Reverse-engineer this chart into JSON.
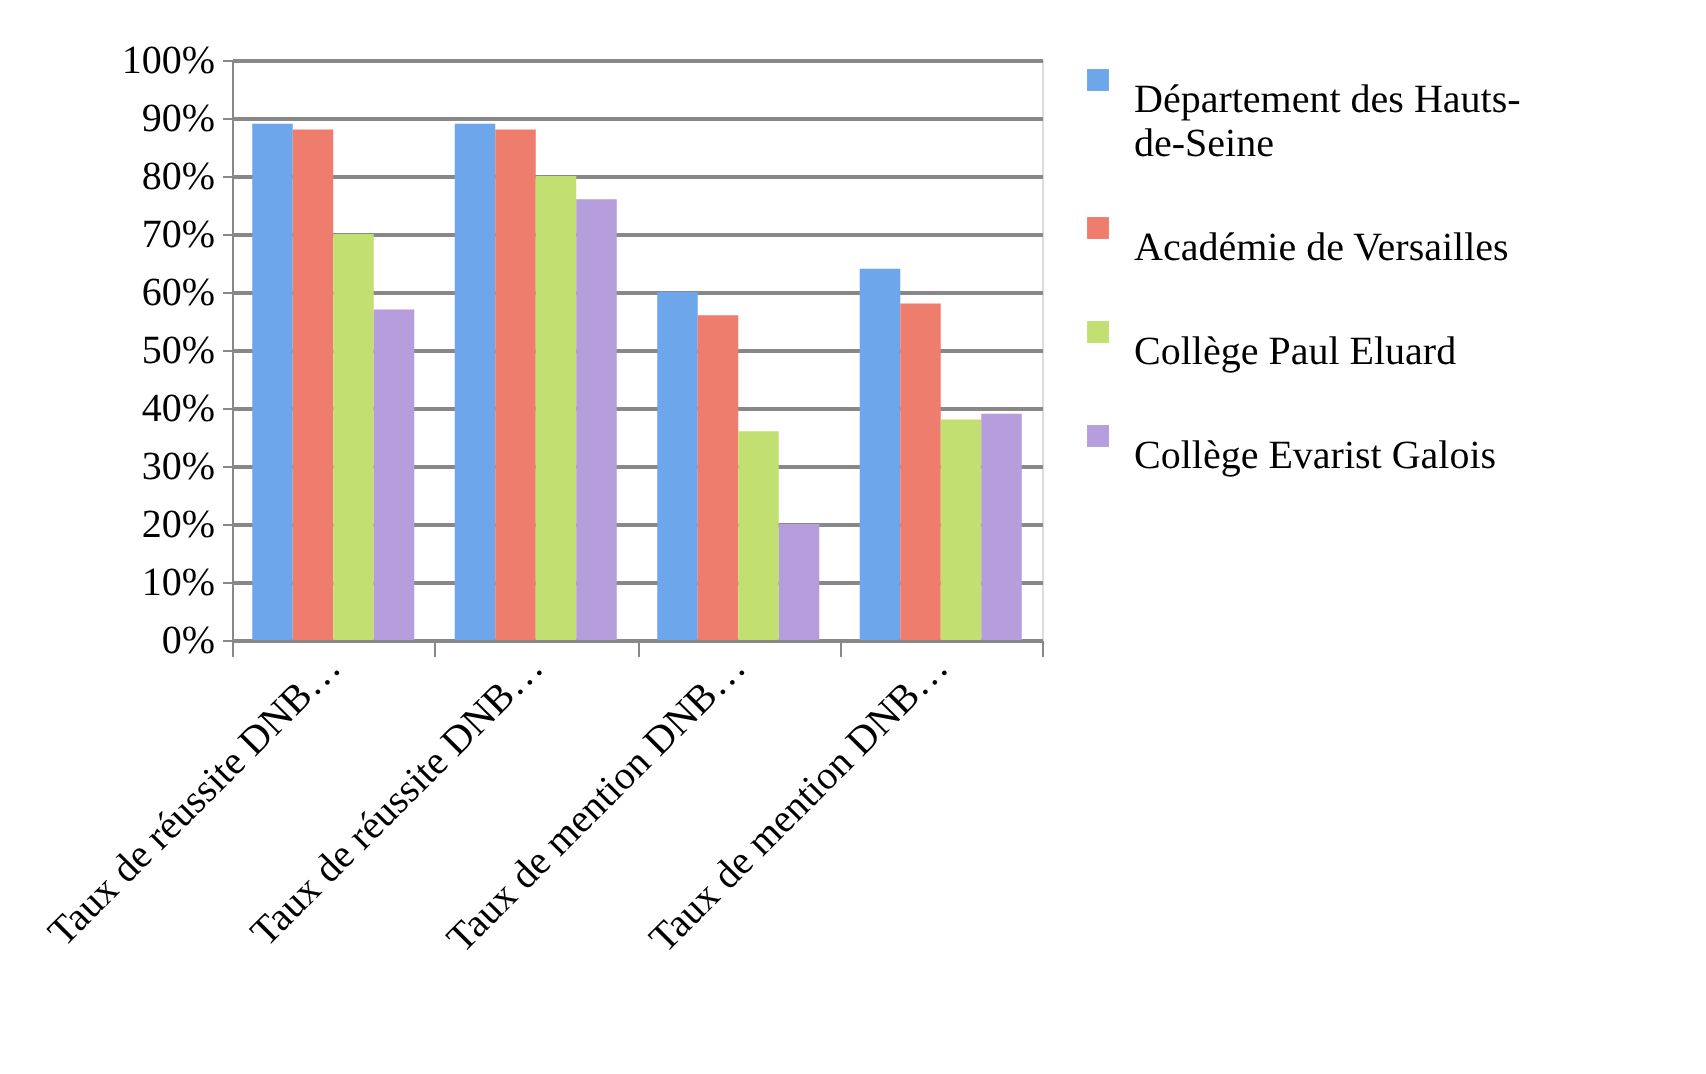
{
  "chart_data": {
    "type": "bar",
    "categories": [
      "Taux de réussite DNB…",
      "Taux de réussite DNB…",
      "Taux de mention DNB…",
      "Taux de mention DNB…"
    ],
    "series": [
      {
        "name": "Département des Hauts-de-Seine",
        "color": "#6ea6ec",
        "values": [
          89,
          89,
          60,
          64
        ]
      },
      {
        "name": "Académie de Versailles",
        "color": "#ef7d6e",
        "values": [
          88,
          88,
          56,
          58
        ]
      },
      {
        "name": "Collège Paul Eluard",
        "color": "#c2df72",
        "values": [
          70,
          80,
          36,
          38
        ]
      },
      {
        "name": "Collège Evarist Galois",
        "color": "#b59edb",
        "values": [
          57,
          76,
          20,
          39
        ]
      }
    ],
    "ylim": [
      0,
      100
    ],
    "yticks": [
      {
        "value": 0,
        "label": "0%"
      },
      {
        "value": 10,
        "label": "10%"
      },
      {
        "value": 20,
        "label": "20%"
      },
      {
        "value": 30,
        "label": "30%"
      },
      {
        "value": 40,
        "label": "40%"
      },
      {
        "value": 50,
        "label": "50%"
      },
      {
        "value": 60,
        "label": "60%"
      },
      {
        "value": 70,
        "label": "70%"
      },
      {
        "value": 80,
        "label": "80%"
      },
      {
        "value": 90,
        "label": "90%"
      },
      {
        "value": 100,
        "label": "100%"
      }
    ],
    "grid": "y",
    "legend": "right"
  }
}
